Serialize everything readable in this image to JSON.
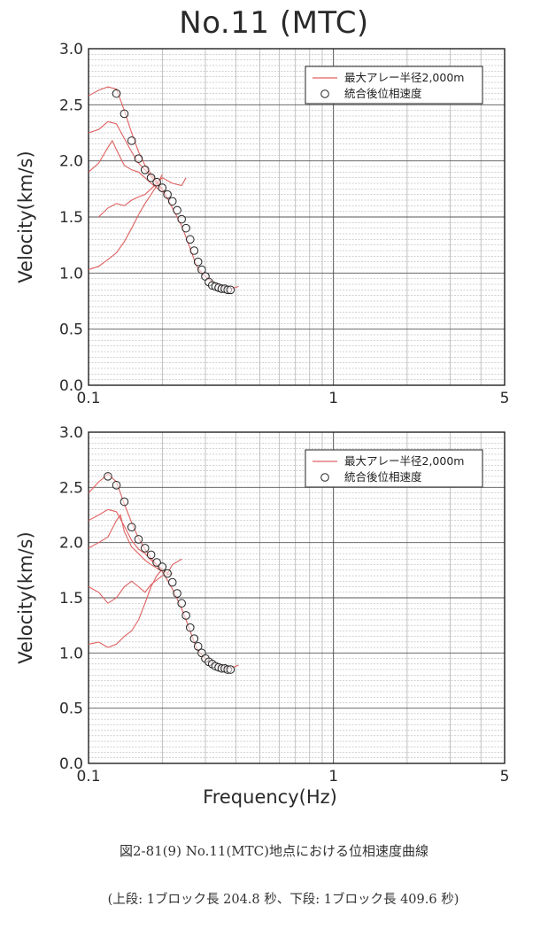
{
  "title": "No.11 (MTC)",
  "caption": "図2-81(9) No.11(MTC)地点における位相速度曲線",
  "subcaption": "(上段: 1ブロック長 204.8 秒、下段: 1ブロック長 409.6 秒)",
  "colors": {
    "curve": "#e06060",
    "marker_stroke": "#222222",
    "grid": "#9a9a9a",
    "frame": "#111111"
  },
  "chart_data": [
    {
      "type": "line",
      "x_scale": "log",
      "xlim": [
        0.1,
        5
      ],
      "ylim": [
        0.0,
        3.0
      ],
      "xlabel": "",
      "ylabel": "Velocity(km/s)",
      "x_ticks": [
        "0.1",
        "1",
        "5"
      ],
      "x_tick_values": [
        0.1,
        1,
        5
      ],
      "y_ticks": [
        "0.0",
        "0.5",
        "1.0",
        "1.5",
        "2.0",
        "2.5",
        "3.0"
      ],
      "y_tick_values": [
        0,
        0.5,
        1.0,
        1.5,
        2.0,
        2.5,
        3.0
      ],
      "grid": true,
      "legend_position": "top-right",
      "legend": [
        "最大アレー半径2,000m",
        "統合後位相速度"
      ],
      "series": [
        {
          "name": "最大アレー半径2,000m",
          "kind": "line",
          "points": [
            [
              0.1,
              2.58
            ],
            [
              0.11,
              2.63
            ],
            [
              0.12,
              2.66
            ],
            [
              0.13,
              2.64
            ],
            [
              0.14,
              2.45
            ],
            [
              0.15,
              2.25
            ],
            [
              0.16,
              2.08
            ],
            [
              0.17,
              1.96
            ],
            [
              0.18,
              1.88
            ],
            [
              0.19,
              1.82
            ],
            [
              0.2,
              1.75
            ],
            [
              0.21,
              1.67
            ],
            [
              0.22,
              1.58
            ],
            [
              0.23,
              1.5
            ],
            [
              0.24,
              1.42
            ],
            [
              0.25,
              1.32
            ],
            [
              0.26,
              1.22
            ],
            [
              0.27,
              1.12
            ],
            [
              0.28,
              1.04
            ],
            [
              0.3,
              0.97
            ],
            [
              0.32,
              0.92
            ],
            [
              0.35,
              0.88
            ],
            [
              0.38,
              0.86
            ],
            [
              0.41,
              0.88
            ]
          ]
        },
        {
          "kind": "line",
          "points": [
            [
              0.1,
              2.25
            ],
            [
              0.11,
              2.28
            ],
            [
              0.12,
              2.35
            ],
            [
              0.13,
              2.33
            ],
            [
              0.14,
              2.2
            ],
            [
              0.15,
              2.08
            ],
            [
              0.16,
              1.98
            ],
            [
              0.17,
              1.92
            ],
            [
              0.18,
              1.86
            ],
            [
              0.19,
              1.8
            ],
            [
              0.2,
              1.74
            ],
            [
              0.21,
              1.66
            ]
          ]
        },
        {
          "kind": "line",
          "points": [
            [
              0.1,
              1.9
            ],
            [
              0.11,
              1.98
            ],
            [
              0.12,
              2.12
            ],
            [
              0.125,
              2.18
            ],
            [
              0.13,
              2.1
            ],
            [
              0.14,
              1.96
            ],
            [
              0.15,
              1.92
            ],
            [
              0.16,
              1.9
            ],
            [
              0.17,
              1.85
            ],
            [
              0.18,
              1.8
            ],
            [
              0.2,
              1.72
            ]
          ]
        },
        {
          "kind": "line",
          "points": [
            [
              0.11,
              1.5
            ],
            [
              0.12,
              1.58
            ],
            [
              0.13,
              1.62
            ],
            [
              0.14,
              1.6
            ],
            [
              0.15,
              1.65
            ],
            [
              0.16,
              1.68
            ],
            [
              0.17,
              1.7
            ],
            [
              0.18,
              1.75
            ],
            [
              0.2,
              1.85
            ],
            [
              0.22,
              1.8
            ],
            [
              0.24,
              1.78
            ],
            [
              0.25,
              1.85
            ]
          ]
        },
        {
          "kind": "line",
          "points": [
            [
              0.1,
              1.03
            ],
            [
              0.11,
              1.06
            ],
            [
              0.12,
              1.12
            ],
            [
              0.13,
              1.18
            ],
            [
              0.14,
              1.28
            ],
            [
              0.15,
              1.4
            ],
            [
              0.16,
              1.52
            ],
            [
              0.17,
              1.62
            ],
            [
              0.18,
              1.7
            ],
            [
              0.19,
              1.78
            ],
            [
              0.2,
              1.88
            ]
          ]
        },
        {
          "name": "統合後位相速度",
          "kind": "markers",
          "points": [
            [
              0.13,
              2.6
            ],
            [
              0.14,
              2.42
            ],
            [
              0.15,
              2.18
            ],
            [
              0.16,
              2.02
            ],
            [
              0.17,
              1.92
            ],
            [
              0.18,
              1.85
            ],
            [
              0.19,
              1.81
            ],
            [
              0.2,
              1.76
            ],
            [
              0.21,
              1.7
            ],
            [
              0.22,
              1.64
            ],
            [
              0.23,
              1.56
            ],
            [
              0.24,
              1.48
            ],
            [
              0.25,
              1.4
            ],
            [
              0.26,
              1.3
            ],
            [
              0.27,
              1.2
            ],
            [
              0.28,
              1.1
            ],
            [
              0.29,
              1.03
            ],
            [
              0.3,
              0.97
            ],
            [
              0.31,
              0.92
            ],
            [
              0.32,
              0.89
            ],
            [
              0.33,
              0.88
            ],
            [
              0.34,
              0.87
            ],
            [
              0.35,
              0.86
            ],
            [
              0.36,
              0.86
            ],
            [
              0.37,
              0.85
            ],
            [
              0.38,
              0.85
            ]
          ]
        }
      ]
    },
    {
      "type": "line",
      "x_scale": "log",
      "xlim": [
        0.1,
        5
      ],
      "ylim": [
        0.0,
        3.0
      ],
      "xlabel": "Frequency(Hz)",
      "ylabel": "Velocity(km/s)",
      "x_ticks": [
        "0.1",
        "1",
        "5"
      ],
      "x_tick_values": [
        0.1,
        1,
        5
      ],
      "y_ticks": [
        "0.0",
        "0.5",
        "1.0",
        "1.5",
        "2.0",
        "2.5",
        "3.0"
      ],
      "y_tick_values": [
        0,
        0.5,
        1.0,
        1.5,
        2.0,
        2.5,
        3.0
      ],
      "grid": true,
      "legend_position": "top-right",
      "legend": [
        "最大アレー半径2,000m",
        "統合後位相速度"
      ],
      "series": [
        {
          "name": "最大アレー半径2,000m",
          "kind": "line",
          "points": [
            [
              0.1,
              2.45
            ],
            [
              0.11,
              2.55
            ],
            [
              0.12,
              2.62
            ],
            [
              0.13,
              2.55
            ],
            [
              0.14,
              2.35
            ],
            [
              0.15,
              2.18
            ],
            [
              0.16,
              2.04
            ],
            [
              0.17,
              1.94
            ],
            [
              0.18,
              1.86
            ],
            [
              0.19,
              1.8
            ],
            [
              0.2,
              1.74
            ],
            [
              0.21,
              1.66
            ],
            [
              0.22,
              1.58
            ],
            [
              0.23,
              1.49
            ],
            [
              0.24,
              1.4
            ],
            [
              0.25,
              1.3
            ],
            [
              0.26,
              1.2
            ],
            [
              0.27,
              1.1
            ],
            [
              0.28,
              1.02
            ],
            [
              0.3,
              0.95
            ],
            [
              0.32,
              0.9
            ],
            [
              0.35,
              0.87
            ],
            [
              0.38,
              0.86
            ],
            [
              0.41,
              0.89
            ]
          ]
        },
        {
          "kind": "line",
          "points": [
            [
              0.1,
              2.2
            ],
            [
              0.11,
              2.25
            ],
            [
              0.12,
              2.3
            ],
            [
              0.13,
              2.28
            ],
            [
              0.14,
              2.15
            ],
            [
              0.15,
              2.02
            ],
            [
              0.16,
              1.94
            ],
            [
              0.17,
              1.9
            ],
            [
              0.18,
              1.84
            ],
            [
              0.19,
              1.8
            ],
            [
              0.2,
              1.76
            ],
            [
              0.21,
              1.72
            ],
            [
              0.22,
              1.8
            ],
            [
              0.24,
              1.85
            ]
          ]
        },
        {
          "kind": "line",
          "points": [
            [
              0.1,
              1.95
            ],
            [
              0.11,
              2.0
            ],
            [
              0.12,
              2.05
            ],
            [
              0.13,
              2.2
            ],
            [
              0.135,
              2.25
            ],
            [
              0.14,
              2.1
            ],
            [
              0.15,
              1.96
            ],
            [
              0.16,
              1.9
            ],
            [
              0.17,
              1.84
            ],
            [
              0.18,
              1.8
            ],
            [
              0.2,
              1.74
            ]
          ]
        },
        {
          "kind": "line",
          "points": [
            [
              0.1,
              1.6
            ],
            [
              0.11,
              1.55
            ],
            [
              0.12,
              1.45
            ],
            [
              0.13,
              1.5
            ],
            [
              0.14,
              1.6
            ],
            [
              0.15,
              1.65
            ],
            [
              0.16,
              1.6
            ],
            [
              0.17,
              1.55
            ],
            [
              0.18,
              1.62
            ],
            [
              0.2,
              1.7
            ],
            [
              0.22,
              1.72
            ]
          ]
        },
        {
          "kind": "line",
          "points": [
            [
              0.1,
              1.08
            ],
            [
              0.11,
              1.1
            ],
            [
              0.12,
              1.05
            ],
            [
              0.13,
              1.08
            ],
            [
              0.14,
              1.15
            ],
            [
              0.15,
              1.2
            ],
            [
              0.16,
              1.3
            ],
            [
              0.17,
              1.45
            ],
            [
              0.18,
              1.6
            ],
            [
              0.19,
              1.7
            ],
            [
              0.2,
              1.76
            ]
          ]
        },
        {
          "name": "統合後位相速度",
          "kind": "markers",
          "points": [
            [
              0.12,
              2.6
            ],
            [
              0.13,
              2.52
            ],
            [
              0.14,
              2.37
            ],
            [
              0.15,
              2.14
            ],
            [
              0.16,
              2.03
            ],
            [
              0.17,
              1.95
            ],
            [
              0.18,
              1.89
            ],
            [
              0.19,
              1.82
            ],
            [
              0.2,
              1.78
            ],
            [
              0.21,
              1.72
            ],
            [
              0.22,
              1.64
            ],
            [
              0.23,
              1.54
            ],
            [
              0.24,
              1.45
            ],
            [
              0.25,
              1.34
            ],
            [
              0.26,
              1.23
            ],
            [
              0.27,
              1.13
            ],
            [
              0.28,
              1.06
            ],
            [
              0.29,
              1.0
            ],
            [
              0.3,
              0.95
            ],
            [
              0.31,
              0.92
            ],
            [
              0.32,
              0.9
            ],
            [
              0.33,
              0.88
            ],
            [
              0.34,
              0.87
            ],
            [
              0.35,
              0.86
            ],
            [
              0.36,
              0.86
            ],
            [
              0.37,
              0.85
            ],
            [
              0.38,
              0.85
            ]
          ]
        }
      ]
    }
  ]
}
